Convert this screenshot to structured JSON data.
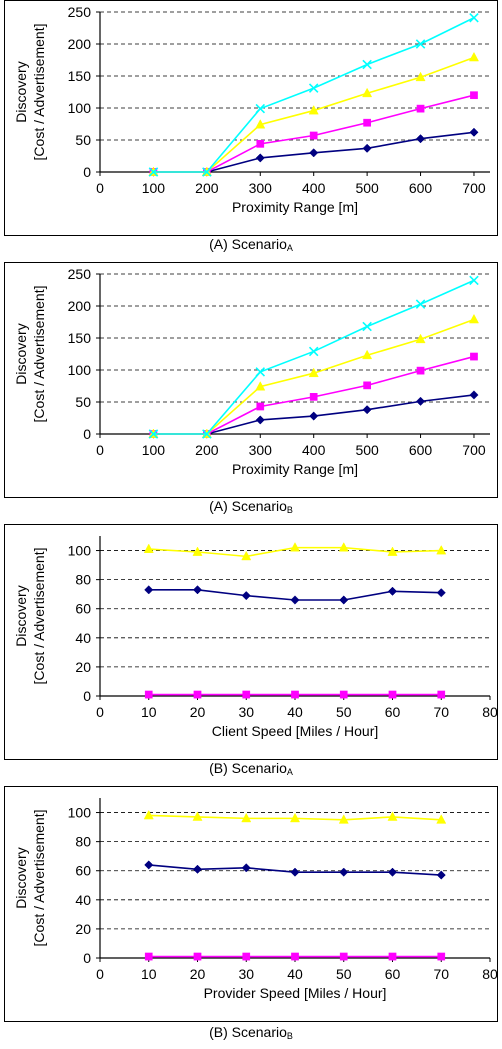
{
  "chart_data": [
    {
      "type": "line",
      "ylabel": [
        "Discovery",
        "[Cost / Advertisement]"
      ],
      "xlabel": "Proximity Range [m]",
      "caption": {
        "prefix": "(A) Scenario",
        "sub": "A"
      },
      "x": [
        100,
        200,
        300,
        400,
        500,
        600,
        700
      ],
      "xticks": [
        0,
        100,
        200,
        300,
        400,
        500,
        600,
        700
      ],
      "yticks": [
        0,
        50,
        100,
        150,
        200,
        250
      ],
      "xlim": [
        0,
        730
      ],
      "ylim": [
        0,
        250
      ],
      "grid": "horizontal-dashed",
      "legend": "none",
      "series": [
        {
          "values": [
            0,
            0,
            22,
            30,
            37,
            52,
            62
          ],
          "color": "#000080",
          "marker": "diamond"
        },
        {
          "values": [
            0,
            0,
            44,
            57,
            77,
            99,
            120
          ],
          "color": "#ff00ff",
          "marker": "square"
        },
        {
          "values": [
            0,
            0,
            74,
            96,
            123,
            148,
            179
          ],
          "color": "#ffff00",
          "marker": "triangle"
        },
        {
          "values": [
            0,
            0,
            99,
            131,
            168,
            200,
            241
          ],
          "color": "#00ffff",
          "marker": "x"
        }
      ]
    },
    {
      "type": "line",
      "ylabel": [
        "Discovery",
        "[Cost / Advertisement]"
      ],
      "xlabel": "Proximity Range [m]",
      "caption": {
        "prefix": "(A) Scenario",
        "sub": "B"
      },
      "x": [
        100,
        200,
        300,
        400,
        500,
        600,
        700
      ],
      "xticks": [
        0,
        100,
        200,
        300,
        400,
        500,
        600,
        700
      ],
      "yticks": [
        0,
        50,
        100,
        150,
        200,
        250
      ],
      "xlim": [
        0,
        730
      ],
      "ylim": [
        0,
        250
      ],
      "grid": "horizontal-dashed",
      "legend": "none",
      "series": [
        {
          "values": [
            0,
            0,
            22,
            28,
            38,
            51,
            61
          ],
          "color": "#000080",
          "marker": "diamond"
        },
        {
          "values": [
            0,
            0,
            43,
            58,
            76,
            99,
            121
          ],
          "color": "#ff00ff",
          "marker": "square"
        },
        {
          "values": [
            0,
            0,
            74,
            95,
            123,
            148,
            179
          ],
          "color": "#ffff00",
          "marker": "triangle"
        },
        {
          "values": [
            0,
            0,
            97,
            129,
            168,
            203,
            240
          ],
          "color": "#00ffff",
          "marker": "x"
        }
      ]
    },
    {
      "type": "line",
      "ylabel": [
        "Discovery",
        "[Cost / Advertisement]"
      ],
      "xlabel": "Client Speed [Miles / Hour]",
      "caption": {
        "prefix": "(B) Scenario",
        "sub": "A"
      },
      "x": [
        10,
        20,
        30,
        40,
        50,
        60,
        70
      ],
      "xticks": [
        0,
        10,
        20,
        30,
        40,
        50,
        60,
        70,
        80
      ],
      "yticks": [
        0,
        20,
        40,
        60,
        80,
        100
      ],
      "xlim": [
        0,
        80
      ],
      "ylim": [
        0,
        110
      ],
      "grid": "horizontal-dashed",
      "legend": "none",
      "series": [
        {
          "values": [
            101,
            99,
            96,
            102,
            102,
            99,
            100
          ],
          "color": "#ffff00",
          "marker": "triangle"
        },
        {
          "values": [
            73,
            73,
            69,
            66,
            66,
            72,
            71
          ],
          "color": "#000080",
          "marker": "diamond"
        },
        {
          "values": [
            1,
            1,
            1,
            1,
            1,
            1,
            1
          ],
          "color": "#ff00ff",
          "marker": "square"
        }
      ]
    },
    {
      "type": "line",
      "ylabel": [
        "Discovery",
        "[Cost / Advertisement]"
      ],
      "xlabel": "Provider Speed [Miles / Hour]",
      "caption": {
        "prefix": "(B) Scenario",
        "sub": "B"
      },
      "x": [
        10,
        20,
        30,
        40,
        50,
        60,
        70
      ],
      "xticks": [
        0,
        10,
        20,
        30,
        40,
        50,
        60,
        70,
        80
      ],
      "yticks": [
        0,
        20,
        40,
        60,
        80,
        100
      ],
      "xlim": [
        0,
        80
      ],
      "ylim": [
        0,
        110
      ],
      "grid": "horizontal-dashed",
      "legend": "none",
      "series": [
        {
          "values": [
            98,
            97,
            96,
            96,
            95,
            97,
            95
          ],
          "color": "#ffff00",
          "marker": "triangle"
        },
        {
          "values": [
            64,
            61,
            62,
            59,
            59,
            59,
            57
          ],
          "color": "#000080",
          "marker": "diamond"
        },
        {
          "values": [
            1,
            1,
            1,
            1,
            1,
            1,
            1
          ],
          "color": "#ff00ff",
          "marker": "square"
        }
      ]
    }
  ]
}
